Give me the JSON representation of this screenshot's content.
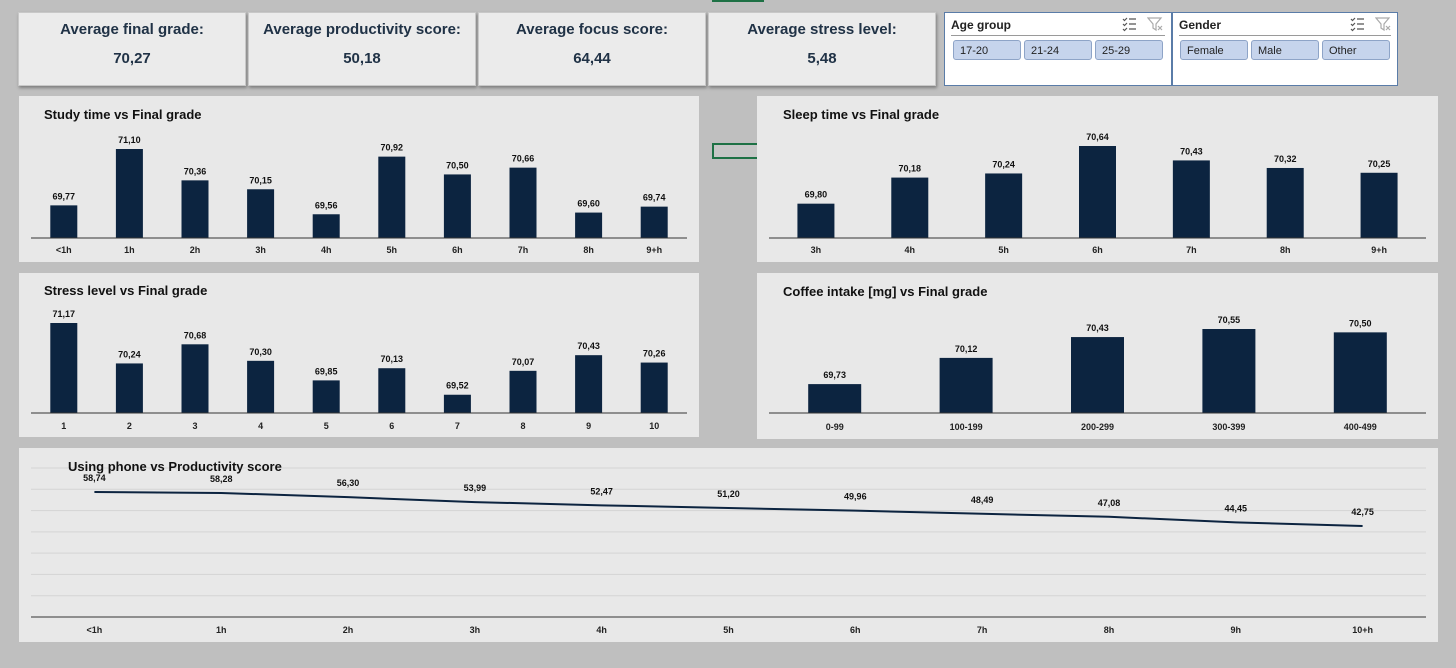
{
  "kpis": [
    {
      "title": "Average final grade:",
      "value": "70,27"
    },
    {
      "title": "Average productivity score:",
      "value": "50,18"
    },
    {
      "title": "Average focus score:",
      "value": "64,44"
    },
    {
      "title": "Average stress level:",
      "value": "5,48"
    }
  ],
  "slicers": {
    "age": {
      "title": "Age group",
      "options": [
        "17-20",
        "21-24",
        "25-29"
      ]
    },
    "gender": {
      "title": "Gender",
      "options": [
        "Female",
        "Male",
        "Other"
      ]
    }
  },
  "colors": {
    "bar": "#0c2440",
    "line": "#0c2440",
    "panel": "#e8e8e8",
    "background": "#bfbfbf",
    "slicer_button": "#c6d4ec"
  },
  "chart_data": [
    {
      "id": "study",
      "type": "bar",
      "title": "Study time vs Final grade",
      "categories": [
        "<1h",
        "1h",
        "2h",
        "3h",
        "4h",
        "5h",
        "6h",
        "7h",
        "8h",
        "9+h"
      ],
      "values": [
        69.77,
        71.1,
        70.36,
        70.15,
        69.56,
        70.92,
        70.5,
        70.66,
        69.6,
        69.74
      ],
      "labels": [
        "69,77",
        "71,10",
        "70,36",
        "70,15",
        "69,56",
        "70,92",
        "70,50",
        "70,66",
        "69,60",
        "69,74"
      ],
      "ylim": [
        69.0,
        71.1
      ],
      "grid": false,
      "legend": "none"
    },
    {
      "id": "sleep",
      "type": "bar",
      "title": "Sleep time vs Final grade",
      "categories": [
        "3h",
        "4h",
        "5h",
        "6h",
        "7h",
        "8h",
        "9+h"
      ],
      "values": [
        69.8,
        70.18,
        70.24,
        70.64,
        70.43,
        70.32,
        70.25
      ],
      "labels": [
        "69,80",
        "70,18",
        "70,24",
        "70,64",
        "70,43",
        "70,32",
        "70,25"
      ],
      "ylim": [
        69.3,
        70.64
      ],
      "grid": false,
      "legend": "none"
    },
    {
      "id": "stress",
      "type": "bar",
      "title": "Stress level vs Final grade",
      "categories": [
        "1",
        "2",
        "3",
        "4",
        "5",
        "6",
        "7",
        "8",
        "9",
        "10"
      ],
      "values": [
        71.17,
        70.24,
        70.68,
        70.3,
        69.85,
        70.13,
        69.52,
        70.07,
        70.43,
        70.26
      ],
      "labels": [
        "71,17",
        "70,24",
        "70,68",
        "70,30",
        "69,85",
        "70,13",
        "69,52",
        "70,07",
        "70,43",
        "70,26"
      ],
      "ylim": [
        69.1,
        71.17
      ],
      "grid": false,
      "legend": "none"
    },
    {
      "id": "coffee",
      "type": "bar",
      "title": "Coffee intake [mg] vs Final grade",
      "categories": [
        "0-99",
        "100-199",
        "200-299",
        "300-399",
        "400-499"
      ],
      "values": [
        69.73,
        70.12,
        70.43,
        70.55,
        70.5
      ],
      "labels": [
        "69,73",
        "70,12",
        "70,43",
        "70,55",
        "70,50"
      ],
      "ylim": [
        69.3,
        70.55
      ],
      "grid": false,
      "legend": "none"
    },
    {
      "id": "phone",
      "type": "line",
      "title": "Using phone vs Productivity score",
      "categories": [
        "<1h",
        "1h",
        "2h",
        "3h",
        "4h",
        "5h",
        "6h",
        "7h",
        "8h",
        "9h",
        "10+h"
      ],
      "values": [
        58.74,
        58.28,
        56.3,
        53.99,
        52.47,
        51.2,
        49.96,
        48.49,
        47.08,
        44.45,
        42.75
      ],
      "labels": [
        "58,74",
        "58,28",
        "56,30",
        "53,99",
        "52,47",
        "51,20",
        "49,96",
        "48,49",
        "47,08",
        "44,45",
        "42,75"
      ],
      "ylim": [
        0,
        70
      ],
      "grid": true,
      "legend": "none"
    }
  ]
}
